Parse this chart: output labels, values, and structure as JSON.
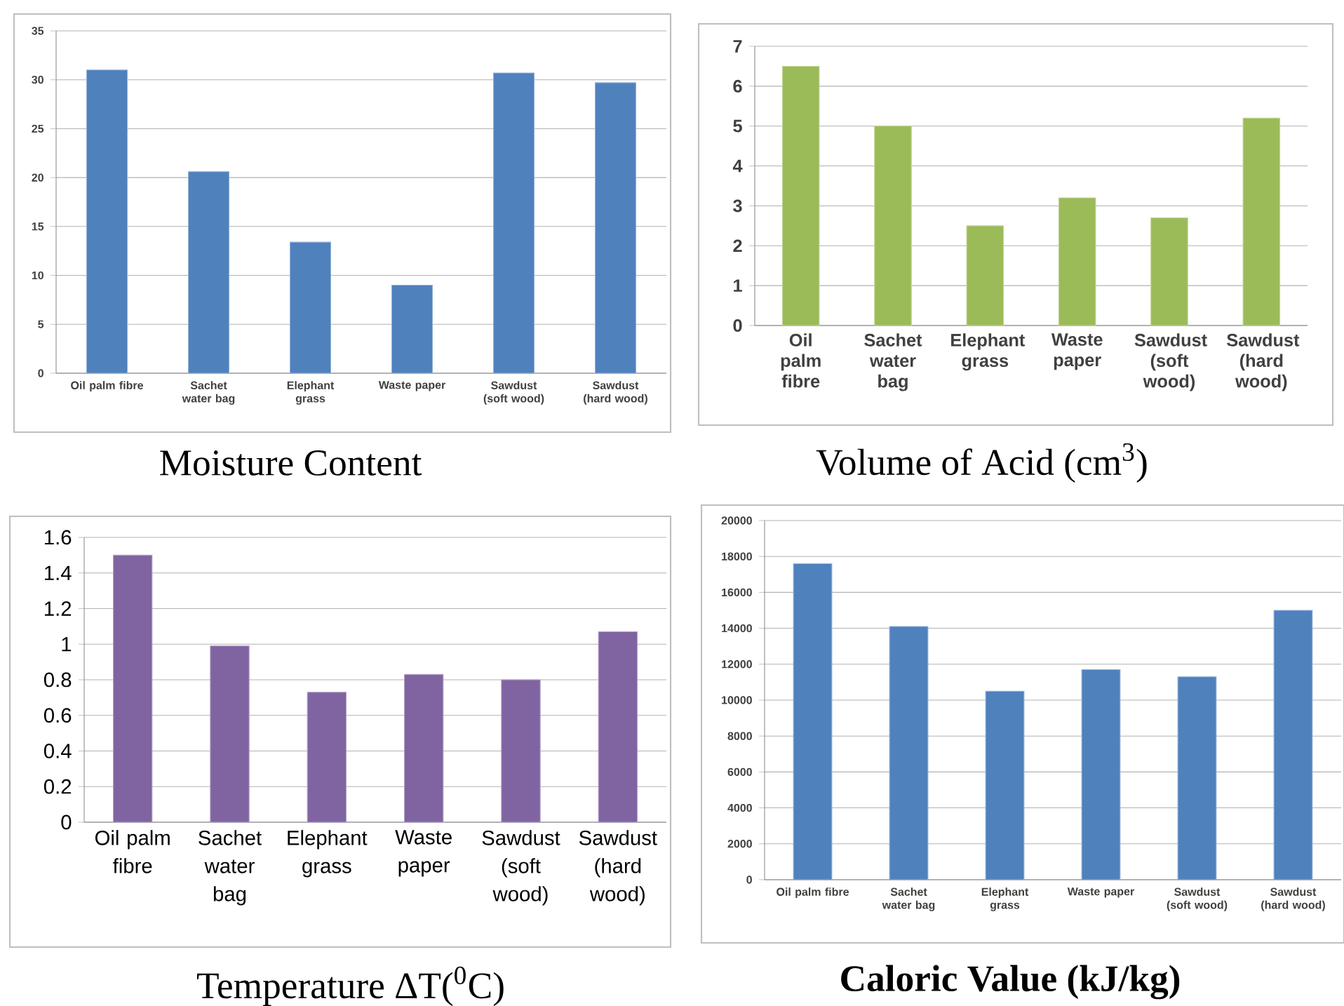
{
  "chart_data": [
    {
      "type": "bar",
      "title": "Moisture Content",
      "categories": [
        "Oil palm fibre",
        "Sachet water bag",
        "Elephant grass",
        "Waste paper",
        "Sawdust (soft wood)",
        "Sawdust (hard wood)"
      ],
      "values": [
        31,
        20.6,
        13.4,
        9,
        30.7,
        29.7
      ],
      "color": "#4f81bd",
      "ylim": [
        0,
        35
      ],
      "yticks": [
        0,
        5,
        10,
        15,
        20,
        25,
        30,
        35
      ],
      "grid": "y"
    },
    {
      "type": "bar",
      "title": "Volume of Acid (cm$^{3}$)",
      "categories": [
        "Oil palm fibre",
        "Sachet water bag",
        "Elephant grass",
        "Waste paper",
        "Sawdust (soft wood)",
        "Sawdust (hard wood)"
      ],
      "values": [
        6.5,
        5.0,
        2.5,
        3.2,
        2.7,
        5.2
      ],
      "color": "#9bbb59",
      "ylim": [
        0,
        7
      ],
      "yticks": [
        0,
        1,
        2,
        3,
        4,
        5,
        6,
        7
      ],
      "grid": "y"
    },
    {
      "type": "bar",
      "title": "Temperature  ΔT($^{0}$C)",
      "categories": [
        "Oil palm fibre",
        "Sachet water bag",
        "Elephant grass",
        "Waste paper",
        "Sawdust (soft wood)",
        "Sawdust (hard wood)"
      ],
      "values": [
        1.5,
        0.99,
        0.73,
        0.83,
        0.8,
        1.07
      ],
      "color": "#8064a2",
      "ylim": [
        0,
        1.6
      ],
      "yticks": [
        0,
        0.2,
        0.4,
        0.6,
        0.8,
        1,
        1.2,
        1.4,
        1.6
      ],
      "grid": "y"
    },
    {
      "type": "bar",
      "title": "Caloric Value (kJ/kg)",
      "categories": [
        "Oil palm fibre",
        "Sachet water bag",
        "Elephant grass",
        "Waste paper",
        "Sawdust (soft wood)",
        "Sawdust (hard wood)"
      ],
      "values": [
        17600,
        14100,
        10500,
        11700,
        11300,
        15000
      ],
      "color": "#4f81bd",
      "ylim": [
        0,
        20000
      ],
      "yticks": [
        0,
        2000,
        4000,
        6000,
        8000,
        10000,
        12000,
        14000,
        16000,
        18000,
        20000
      ],
      "grid": "y"
    }
  ]
}
